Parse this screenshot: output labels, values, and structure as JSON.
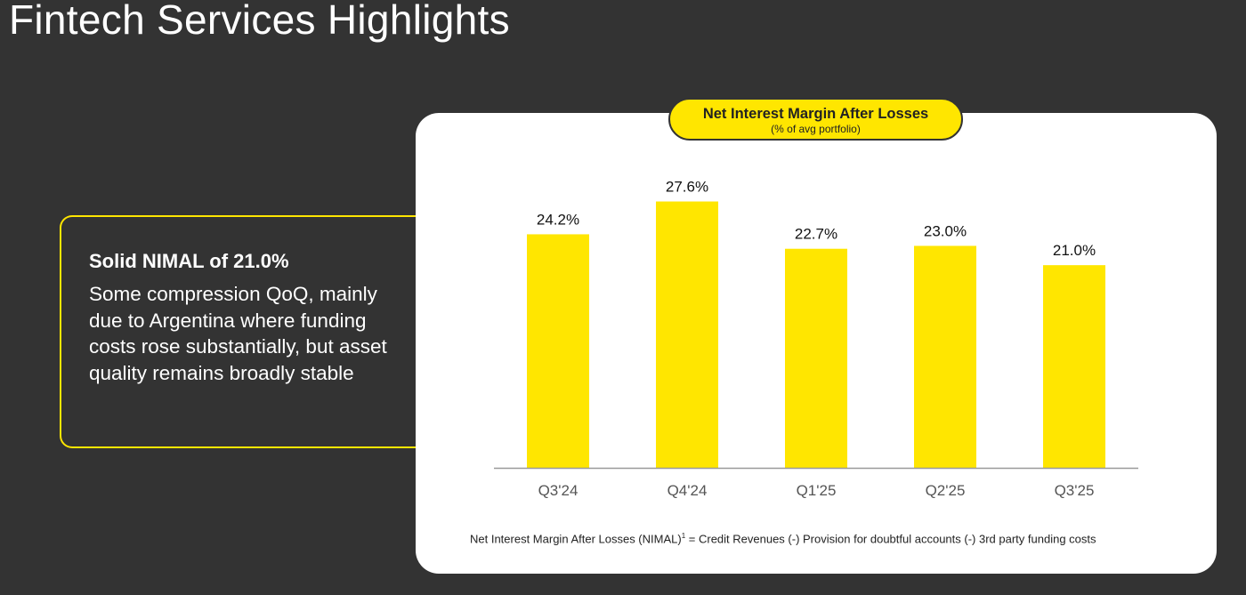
{
  "page": {
    "title": "Fintech Services Highlights"
  },
  "callout": {
    "heading": "Solid NIMAL of 21.0%",
    "body": "Some compression QoQ, mainly due to Argentina where funding costs rose substantially, but asset quality remains broadly stable"
  },
  "chart_data": {
    "type": "bar",
    "title": "Net Interest Margin After Losses",
    "subtitle": "(% of avg portfolio)",
    "categories": [
      "Q3'24",
      "Q4'24",
      "Q1'25",
      "Q2'25",
      "Q3'25"
    ],
    "values": [
      24.2,
      27.6,
      22.7,
      23.0,
      21.0
    ],
    "data_labels": [
      "24.2%",
      "27.6%",
      "22.7%",
      "23.0%",
      "21.0%"
    ],
    "xlabel": "",
    "ylabel": "",
    "ylim": [
      0,
      34
    ],
    "grid": false,
    "bar_color": "#ffe600"
  },
  "footnote": {
    "lead": "Net Interest Margin After Losses (NIMAL)",
    "marker": "1",
    "formula": " =  Credit Revenues (-) Provision for doubtful accounts (-) 3rd party funding costs"
  },
  "colors": {
    "background": "#333333",
    "accent": "#ffe600",
    "card": "#ffffff"
  }
}
